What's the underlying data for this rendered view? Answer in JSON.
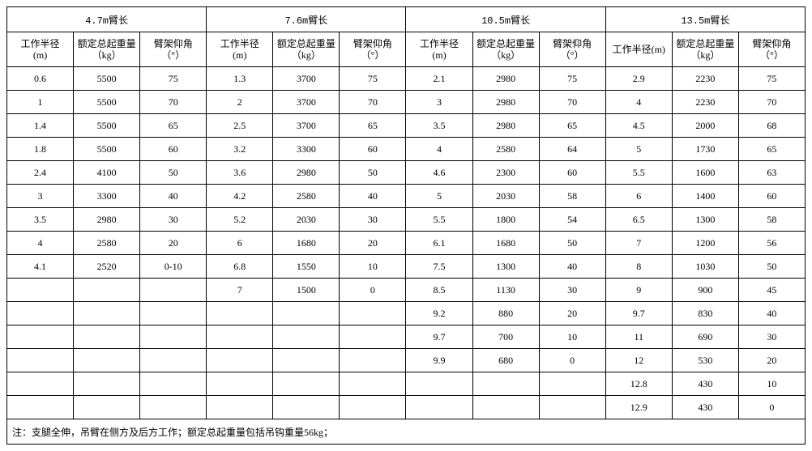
{
  "groups": [
    {
      "title": "4.7m臂长"
    },
    {
      "title": "7.6m臂长"
    },
    {
      "title": "10.5m臂长"
    },
    {
      "title": "13.5m臂长"
    }
  ],
  "colHeaders": {
    "radius": "工作半径",
    "radiusUnit": "(m)",
    "radiusFull": "工作半径(m)",
    "capacity": "额定总起重量",
    "capacityUnit": "（kg）",
    "angle": "臂架仰角",
    "angleUnit": "（°）"
  },
  "rows": [
    {
      "g1": [
        "0.6",
        "5500",
        "75"
      ],
      "g2": [
        "1.3",
        "3700",
        "75"
      ],
      "g3": [
        "2.1",
        "2980",
        "75"
      ],
      "g4": [
        "2.9",
        "2230",
        "75"
      ]
    },
    {
      "g1": [
        "1",
        "5500",
        "70"
      ],
      "g2": [
        "2",
        "3700",
        "70"
      ],
      "g3": [
        "3",
        "2980",
        "70"
      ],
      "g4": [
        "4",
        "2230",
        "70"
      ]
    },
    {
      "g1": [
        "1.4",
        "5500",
        "65"
      ],
      "g2": [
        "2.5",
        "3700",
        "65"
      ],
      "g3": [
        "3.5",
        "2980",
        "65"
      ],
      "g4": [
        "4.5",
        "2000",
        "68"
      ]
    },
    {
      "g1": [
        "1.8",
        "5500",
        "60"
      ],
      "g2": [
        "3.2",
        "3300",
        "60"
      ],
      "g3": [
        "4",
        "2580",
        "64"
      ],
      "g4": [
        "5",
        "1730",
        "65"
      ]
    },
    {
      "g1": [
        "2.4",
        "4100",
        "50"
      ],
      "g2": [
        "3.6",
        "2980",
        "50"
      ],
      "g3": [
        "4.6",
        "2300",
        "60"
      ],
      "g4": [
        "5.5",
        "1600",
        "63"
      ]
    },
    {
      "g1": [
        "3",
        "3300",
        "40"
      ],
      "g2": [
        "4.2",
        "2580",
        "40"
      ],
      "g3": [
        "5",
        "2030",
        "58"
      ],
      "g4": [
        "6",
        "1400",
        "60"
      ]
    },
    {
      "g1": [
        "3.5",
        "2980",
        "30"
      ],
      "g2": [
        "5.2",
        "2030",
        "30"
      ],
      "g3": [
        "5.5",
        "1800",
        "54"
      ],
      "g4": [
        "6.5",
        "1300",
        "58"
      ]
    },
    {
      "g1": [
        "4",
        "2580",
        "20"
      ],
      "g2": [
        "6",
        "1680",
        "20"
      ],
      "g3": [
        "6.1",
        "1680",
        "50"
      ],
      "g4": [
        "7",
        "1200",
        "56"
      ]
    },
    {
      "g1": [
        "4.1",
        "2520",
        "0-10"
      ],
      "g2": [
        "6.8",
        "1550",
        "10"
      ],
      "g3": [
        "7.5",
        "1300",
        "40"
      ],
      "g4": [
        "8",
        "1030",
        "50"
      ]
    },
    {
      "g1": [
        "",
        "",
        ""
      ],
      "g2": [
        "7",
        "1500",
        "0"
      ],
      "g3": [
        "8.5",
        "1130",
        "30"
      ],
      "g4": [
        "9",
        "900",
        "45"
      ]
    },
    {
      "g1": [
        "",
        "",
        ""
      ],
      "g2": [
        "",
        "",
        ""
      ],
      "g3": [
        "9.2",
        "880",
        "20"
      ],
      "g4": [
        "9.7",
        "830",
        "40"
      ]
    },
    {
      "g1": [
        "",
        "",
        ""
      ],
      "g2": [
        "",
        "",
        ""
      ],
      "g3": [
        "9.7",
        "700",
        "10"
      ],
      "g4": [
        "11",
        "690",
        "30"
      ]
    },
    {
      "g1": [
        "",
        "",
        ""
      ],
      "g2": [
        "",
        "",
        ""
      ],
      "g3": [
        "9.9",
        "680",
        "0"
      ],
      "g4": [
        "12",
        "530",
        "20"
      ]
    },
    {
      "g1": [
        "",
        "",
        ""
      ],
      "g2": [
        "",
        "",
        ""
      ],
      "g3": [
        "",
        "",
        ""
      ],
      "g4": [
        "12.8",
        "430",
        "10"
      ]
    },
    {
      "g1": [
        "",
        "",
        ""
      ],
      "g2": [
        "",
        "",
        ""
      ],
      "g3": [
        "",
        "",
        ""
      ],
      "g4": [
        "12.9",
        "430",
        "0"
      ]
    }
  ],
  "footnote": "注：支腿全伸，吊臂在侧方及后方工作；额定总起重量包括吊钩重量56kg；"
}
